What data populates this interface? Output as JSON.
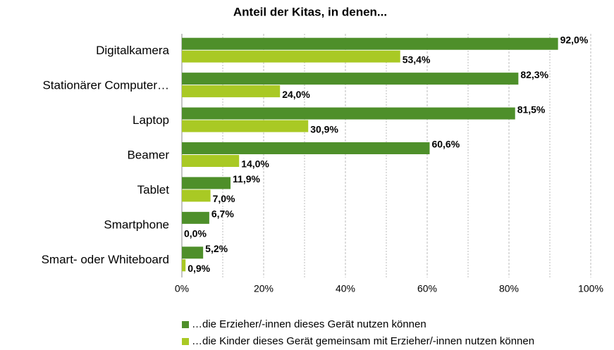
{
  "chart_data": {
    "type": "hbar",
    "title": "Anteil der Kitas, in denen...",
    "categories": [
      "Digitalkamera",
      "Stationärer Computer…",
      "Laptop",
      "Beamer",
      "Tablet",
      "Smartphone",
      "Smart- oder Whiteboard"
    ],
    "series": [
      {
        "name": "…die Erzieher/-innen dieses Gerät nutzen können",
        "color": "#4e8f2a",
        "values": [
          92.0,
          82.3,
          81.5,
          60.6,
          11.9,
          6.7,
          5.2
        ],
        "value_labels": [
          "92,0%",
          "82,3%",
          "81,5%",
          "60,6%",
          "11,9%",
          "6,7%",
          "5,2%"
        ]
      },
      {
        "name": "…die Kinder dieses Gerät gemeinsam mit Erzieher/-innen nutzen können",
        "color": "#a9c924",
        "values": [
          53.4,
          24.0,
          30.9,
          14.0,
          7.0,
          0.0,
          0.9
        ],
        "value_labels": [
          "53,4%",
          "24,0%",
          "30,9%",
          "14,0%",
          "7,0%",
          "0,0%",
          "0,9%"
        ]
      }
    ],
    "xlim": [
      0,
      100
    ],
    "xticks": [
      {
        "value": 0,
        "label": "0%"
      },
      {
        "value": 20,
        "label": "20%"
      },
      {
        "value": 40,
        "label": "40%"
      },
      {
        "value": 60,
        "label": "60%"
      },
      {
        "value": 80,
        "label": "80%"
      },
      {
        "value": 100,
        "label": "100%"
      }
    ],
    "minor_xticks": [
      10,
      30,
      50,
      70,
      90
    ],
    "grid": true,
    "legend": "bottom"
  }
}
